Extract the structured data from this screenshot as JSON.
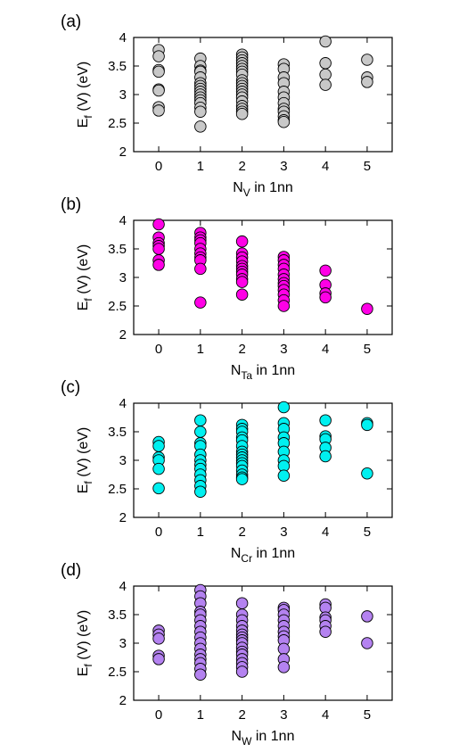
{
  "chart_data": [
    {
      "type": "scatter",
      "panel_label": "(a)",
      "ylabel": "E_f (V) (eV)",
      "xlabel_main": "N",
      "xlabel_sub": "V",
      "xlabel_tail": " in 1nn",
      "ylim": [
        2,
        4
      ],
      "xlim": [
        -0.6,
        5.6
      ],
      "xticks": [
        "0",
        "1",
        "2",
        "3",
        "4",
        "5"
      ],
      "yticks": [
        "2",
        "2.5",
        "3",
        "3.5",
        "4"
      ],
      "color": "#c8c8c8",
      "series": [
        {
          "x": 0,
          "values": [
            3.78,
            3.67,
            3.43,
            3.4,
            3.09,
            3.07,
            2.78,
            2.72
          ]
        },
        {
          "x": 1,
          "values": [
            3.63,
            3.5,
            3.42,
            3.4,
            3.3,
            3.2,
            3.15,
            3.1,
            3.05,
            3.0,
            2.95,
            2.9,
            2.85,
            2.77,
            2.7,
            2.44
          ]
        },
        {
          "x": 2,
          "values": [
            3.7,
            3.65,
            3.6,
            3.55,
            3.5,
            3.45,
            3.4,
            3.35,
            3.25,
            3.2,
            3.15,
            3.1,
            3.05,
            3.0,
            2.95,
            2.88,
            2.8,
            2.75,
            2.7,
            2.66
          ]
        },
        {
          "x": 3,
          "values": [
            3.53,
            3.45,
            3.3,
            3.2,
            3.05,
            2.95,
            2.85,
            2.75,
            2.7,
            2.62,
            2.55,
            2.52
          ]
        },
        {
          "x": 4,
          "values": [
            3.93,
            3.55,
            3.35,
            3.17
          ]
        },
        {
          "x": 5,
          "values": [
            3.61,
            3.3,
            3.22
          ]
        }
      ]
    },
    {
      "type": "scatter",
      "panel_label": "(b)",
      "ylabel": "E_f (V) (eV)",
      "xlabel_main": "N",
      "xlabel_sub": "Ta",
      "xlabel_tail": " in 1nn",
      "ylim": [
        2,
        4
      ],
      "xlim": [
        -0.6,
        5.6
      ],
      "xticks": [
        "0",
        "1",
        "2",
        "3",
        "4",
        "5"
      ],
      "yticks": [
        "2",
        "2.5",
        "3",
        "3.5",
        "4"
      ],
      "color": "#ff00e6",
      "series": [
        {
          "x": 0,
          "values": [
            3.93,
            3.7,
            3.6,
            3.55,
            3.5,
            3.3,
            3.22
          ]
        },
        {
          "x": 1,
          "values": [
            3.78,
            3.7,
            3.65,
            3.6,
            3.5,
            3.42,
            3.35,
            3.3,
            3.15,
            2.56
          ]
        },
        {
          "x": 2,
          "values": [
            3.63,
            3.42,
            3.35,
            3.28,
            3.2,
            3.15,
            3.1,
            3.05,
            2.97,
            2.92,
            2.7
          ]
        },
        {
          "x": 3,
          "values": [
            3.36,
            3.3,
            3.22,
            3.15,
            3.05,
            2.97,
            2.9,
            2.85,
            2.78,
            2.7,
            2.6,
            2.5
          ]
        },
        {
          "x": 4,
          "values": [
            3.12,
            2.87,
            2.72,
            2.65
          ]
        },
        {
          "x": 5,
          "values": [
            2.45
          ]
        }
      ]
    },
    {
      "type": "scatter",
      "panel_label": "(c)",
      "ylabel": "E_f (V) (eV)",
      "xlabel_main": "N",
      "xlabel_sub": "Cr",
      "xlabel_tail": " in 1nn",
      "ylim": [
        2,
        4
      ],
      "xlim": [
        -0.6,
        5.6
      ],
      "xticks": [
        "0",
        "1",
        "2",
        "3",
        "4",
        "5"
      ],
      "yticks": [
        "2",
        "2.5",
        "3",
        "3.5",
        "4"
      ],
      "color": "#00f0f0",
      "series": [
        {
          "x": 0,
          "values": [
            3.32,
            3.25,
            3.05,
            3.0,
            2.85,
            2.51
          ]
        },
        {
          "x": 1,
          "values": [
            3.7,
            3.5,
            3.3,
            3.25,
            3.1,
            3.0,
            2.92,
            2.85,
            2.75,
            2.65,
            2.55,
            2.45
          ]
        },
        {
          "x": 2,
          "values": [
            3.62,
            3.55,
            3.5,
            3.4,
            3.35,
            3.25,
            3.15,
            3.1,
            3.05,
            3.0,
            2.95,
            2.9,
            2.82,
            2.75,
            2.7,
            2.67
          ]
        },
        {
          "x": 3,
          "values": [
            3.93,
            3.65,
            3.55,
            3.4,
            3.3,
            3.15,
            3.0,
            2.9,
            2.73
          ]
        },
        {
          "x": 4,
          "values": [
            3.7,
            3.42,
            3.37,
            3.22,
            3.07
          ]
        },
        {
          "x": 5,
          "values": [
            3.65,
            3.62,
            2.77
          ]
        }
      ]
    },
    {
      "type": "scatter",
      "panel_label": "(d)",
      "ylabel": "E_f (V) (eV)",
      "xlabel_main": "N",
      "xlabel_sub": "W",
      "xlabel_tail": " in 1nn",
      "ylim": [
        2,
        4
      ],
      "xlim": [
        -0.6,
        5.6
      ],
      "xticks": [
        "0",
        "1",
        "2",
        "3",
        "4",
        "5"
      ],
      "yticks": [
        "2",
        "2.5",
        "3",
        "3.5",
        "4"
      ],
      "color": "#b482f0",
      "series": [
        {
          "x": 0,
          "values": [
            3.22,
            3.15,
            3.08,
            2.78,
            2.72
          ]
        },
        {
          "x": 1,
          "values": [
            3.93,
            3.82,
            3.7,
            3.55,
            3.5,
            3.4,
            3.3,
            3.2,
            3.1,
            3.0,
            2.9,
            2.8,
            2.72,
            2.65,
            2.55,
            2.45
          ]
        },
        {
          "x": 2,
          "values": [
            3.7,
            3.5,
            3.4,
            3.3,
            3.22,
            3.15,
            3.1,
            3.05,
            3.0,
            2.92,
            2.85,
            2.8,
            2.72,
            2.65,
            2.58,
            2.5
          ]
        },
        {
          "x": 3,
          "values": [
            3.62,
            3.58,
            3.5,
            3.4,
            3.3,
            3.2,
            3.12,
            3.05,
            2.9,
            2.72,
            2.58
          ]
        },
        {
          "x": 4,
          "values": [
            3.68,
            3.62,
            3.45,
            3.4,
            3.3,
            3.2
          ]
        },
        {
          "x": 5,
          "values": [
            3.47,
            3.0
          ]
        }
      ]
    }
  ]
}
